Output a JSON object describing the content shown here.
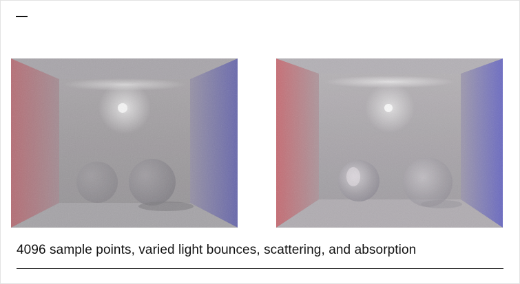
{
  "caption": "4096 sample points, varied light bounces, scattering, and absorption",
  "images": [
    {
      "name": "render-fog-left",
      "kind": "cornell box render"
    },
    {
      "name": "render-fog-right",
      "kind": "cornell box render"
    }
  ],
  "colors": {
    "left_wall": "#c04e5a",
    "right_wall": "#4b4bb8",
    "fog": "#a09ca2",
    "light": "#ffffff"
  }
}
